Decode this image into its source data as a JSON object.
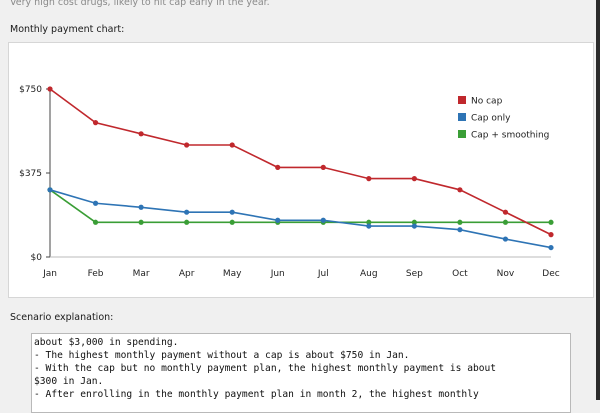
{
  "scenario_description": "Very high cost drugs, likely to hit cap early in the year.",
  "chart_section_label": "Monthly payment chart:",
  "explanation_section_label": "Scenario explanation:",
  "explanation_lines": [
    "about $3,000 in spending.",
    "- The highest monthly payment without a cap is about $750 in Jan.",
    "- With the cap but no monthly payment plan, the highest monthly payment is about",
    "$300 in Jan.",
    "- After enrolling in the monthly payment plan in month 2, the highest monthly"
  ],
  "chart_data": {
    "type": "line",
    "title": "",
    "xlabel": "",
    "ylabel": "",
    "categories": [
      "Jan",
      "Feb",
      "Mar",
      "Apr",
      "May",
      "Jun",
      "Jul",
      "Aug",
      "Sep",
      "Oct",
      "Nov",
      "Dec"
    ],
    "ylim": [
      0,
      750
    ],
    "yticks": [
      0,
      375,
      750
    ],
    "ytick_labels": [
      "$0",
      "$375",
      "$750"
    ],
    "legend_position": "top-right",
    "series": [
      {
        "name": "No cap",
        "color": "#c0282d",
        "values": [
          750,
          600,
          550,
          500,
          500,
          400,
          400,
          350,
          350,
          300,
          200,
          100
        ]
      },
      {
        "name": "Cap only",
        "color": "#2e74b5",
        "values": [
          300,
          240,
          222,
          200,
          200,
          164,
          164,
          138,
          138,
          122,
          80,
          42
        ]
      },
      {
        "name": "Cap + smoothing",
        "color": "#3a9e36",
        "values": [
          300,
          155,
          155,
          155,
          155,
          155,
          155,
          155,
          155,
          155,
          155,
          155
        ]
      }
    ]
  }
}
